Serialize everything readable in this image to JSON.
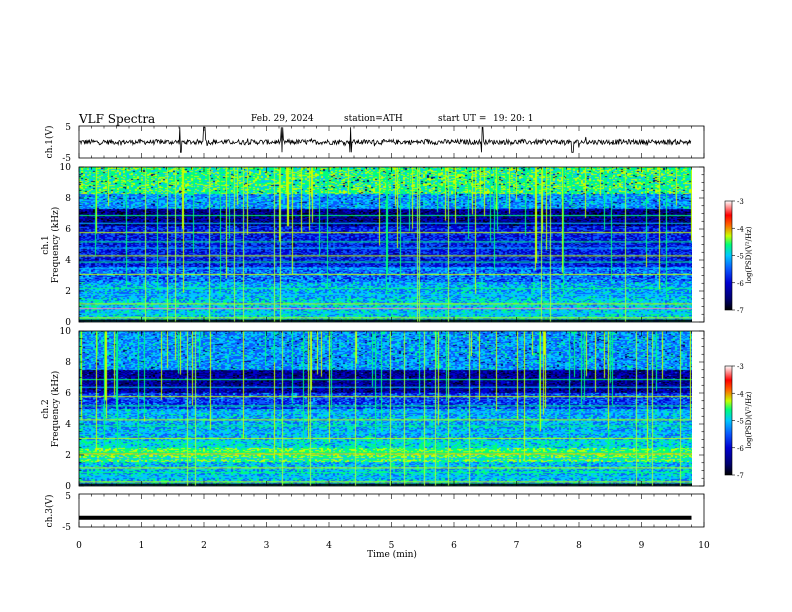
{
  "header": {
    "title": "VLF Spectra",
    "date": "Feb. 29, 2024",
    "station": "station=ATH",
    "start_label": "start UT =",
    "start_time": "19: 20: 1"
  },
  "chart_data": [
    {
      "type": "line",
      "ylabel": "ch.1(V)",
      "ylim": [
        -5,
        5
      ],
      "ytick_labels": [
        "5",
        "-5"
      ],
      "xlim": [
        0,
        10
      ],
      "description_series": "noisy waveform around 0 V with sparse impulsive spikes",
      "spikes_t_min": [
        1.62,
        2.0,
        3.25,
        4.35,
        6.45,
        7.9
      ],
      "x_span": [
        0,
        9.8
      ]
    },
    {
      "type": "heatmap",
      "ylabel_channel": "ch.1",
      "ylabel": "Frequency (kHz)",
      "ylim": [
        0,
        10
      ],
      "ytick_labels": [
        "0",
        "2",
        "4",
        "6",
        "8",
        "10"
      ],
      "xlim": [
        0,
        10
      ],
      "x_span": [
        0,
        9.8
      ],
      "colorbar": {
        "label": "log(PSD)(V²/Hz)",
        "range": [
          -7,
          -3
        ],
        "tick_labels": [
          "-3",
          "-4",
          "-5",
          "-6",
          "-7"
        ]
      }
    },
    {
      "type": "heatmap",
      "ylabel_channel": "ch.2",
      "ylabel": "Frequency (kHz)",
      "ylim": [
        0,
        10
      ],
      "ytick_labels": [
        "0",
        "2",
        "4",
        "6",
        "8",
        "10"
      ],
      "xlim": [
        0,
        10
      ],
      "x_span": [
        0,
        9.8
      ],
      "colorbar": {
        "label": "log(PSD)(V²/Hz)",
        "range": [
          -7,
          -3
        ],
        "tick_labels": [
          "-3",
          "-4",
          "-5",
          "-6",
          "-7"
        ]
      }
    },
    {
      "type": "line",
      "ylabel": "ch.3(V)",
      "ylim": [
        -5,
        5
      ],
      "ytick_labels": [
        "5",
        "-5"
      ],
      "xlim": [
        0,
        10
      ],
      "constant_value": -2.2,
      "x_span": [
        0,
        9.8
      ]
    }
  ],
  "x_axis": {
    "xlabel": "Time (min)",
    "tick_labels": [
      "0",
      "1",
      "2",
      "3",
      "4",
      "5",
      "6",
      "7",
      "8",
      "9",
      "10"
    ]
  },
  "colors": {
    "spectrogram": [
      "#000000",
      "#00006e",
      "#0000d2",
      "#0a5aff",
      "#00c8ff",
      "#00ff7a",
      "#c8ff00",
      "#ff6400",
      "#ff0000",
      "#ffffff"
    ]
  }
}
